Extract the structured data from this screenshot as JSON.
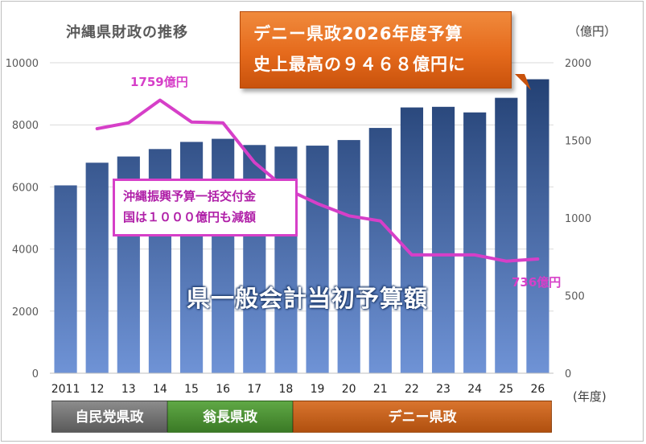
{
  "title": "沖縄県財政の推移",
  "right_unit": "（億円）",
  "x_unit": "(年度)",
  "callout_orange": {
    "line1": "デニー県政2026年度予算",
    "line2": "史上最高の９４６８億円に"
  },
  "callout_pink": {
    "line1": "沖縄振興予算一括交付金",
    "line2": "国は１０００億円も減額"
  },
  "label_peak": "1759億円",
  "label_end": "736億円",
  "bar_series_label": "県一般会計当初予算額",
  "eras": [
    {
      "label": "自民党県政",
      "color": "#6e6e6e"
    },
    {
      "label": "翁長県政",
      "color": "#4a8f33"
    },
    {
      "label": "デニー県政",
      "color": "#c45f1b"
    }
  ],
  "colors": {
    "bar_top": "#1f3c6e",
    "bar_bottom": "#6f93d6",
    "line": "#d63fc8",
    "grid": "#d9d9d9"
  },
  "chart_data": {
    "type": "bar+line",
    "categories": [
      "2011",
      "12",
      "13",
      "14",
      "15",
      "16",
      "17",
      "18",
      "19",
      "20",
      "21",
      "22",
      "23",
      "24",
      "25",
      "26"
    ],
    "series": [
      {
        "name": "県一般会計当初予算額",
        "type": "bar",
        "axis": "left",
        "values": [
          6050,
          6780,
          6980,
          7220,
          7450,
          7550,
          7350,
          7300,
          7330,
          7510,
          7900,
          8560,
          8580,
          8400,
          8870,
          9468
        ]
      },
      {
        "name": "沖縄振興予算一括交付金",
        "type": "line",
        "axis": "right",
        "values": [
          null,
          1575,
          1613,
          1759,
          1618,
          1613,
          1358,
          1188,
          1093,
          1014,
          981,
          762,
          762,
          762,
          722,
          736
        ]
      }
    ],
    "y_left": {
      "min": 0,
      "max": 10000,
      "ticks": [
        0,
        2000,
        4000,
        6000,
        8000,
        10000
      ]
    },
    "y_right": {
      "min": 0,
      "max": 2000,
      "ticks": [
        0,
        500,
        1000,
        1500,
        2000
      ],
      "unit": "（億円）"
    },
    "xlabel": "(年度)",
    "grid": true
  }
}
